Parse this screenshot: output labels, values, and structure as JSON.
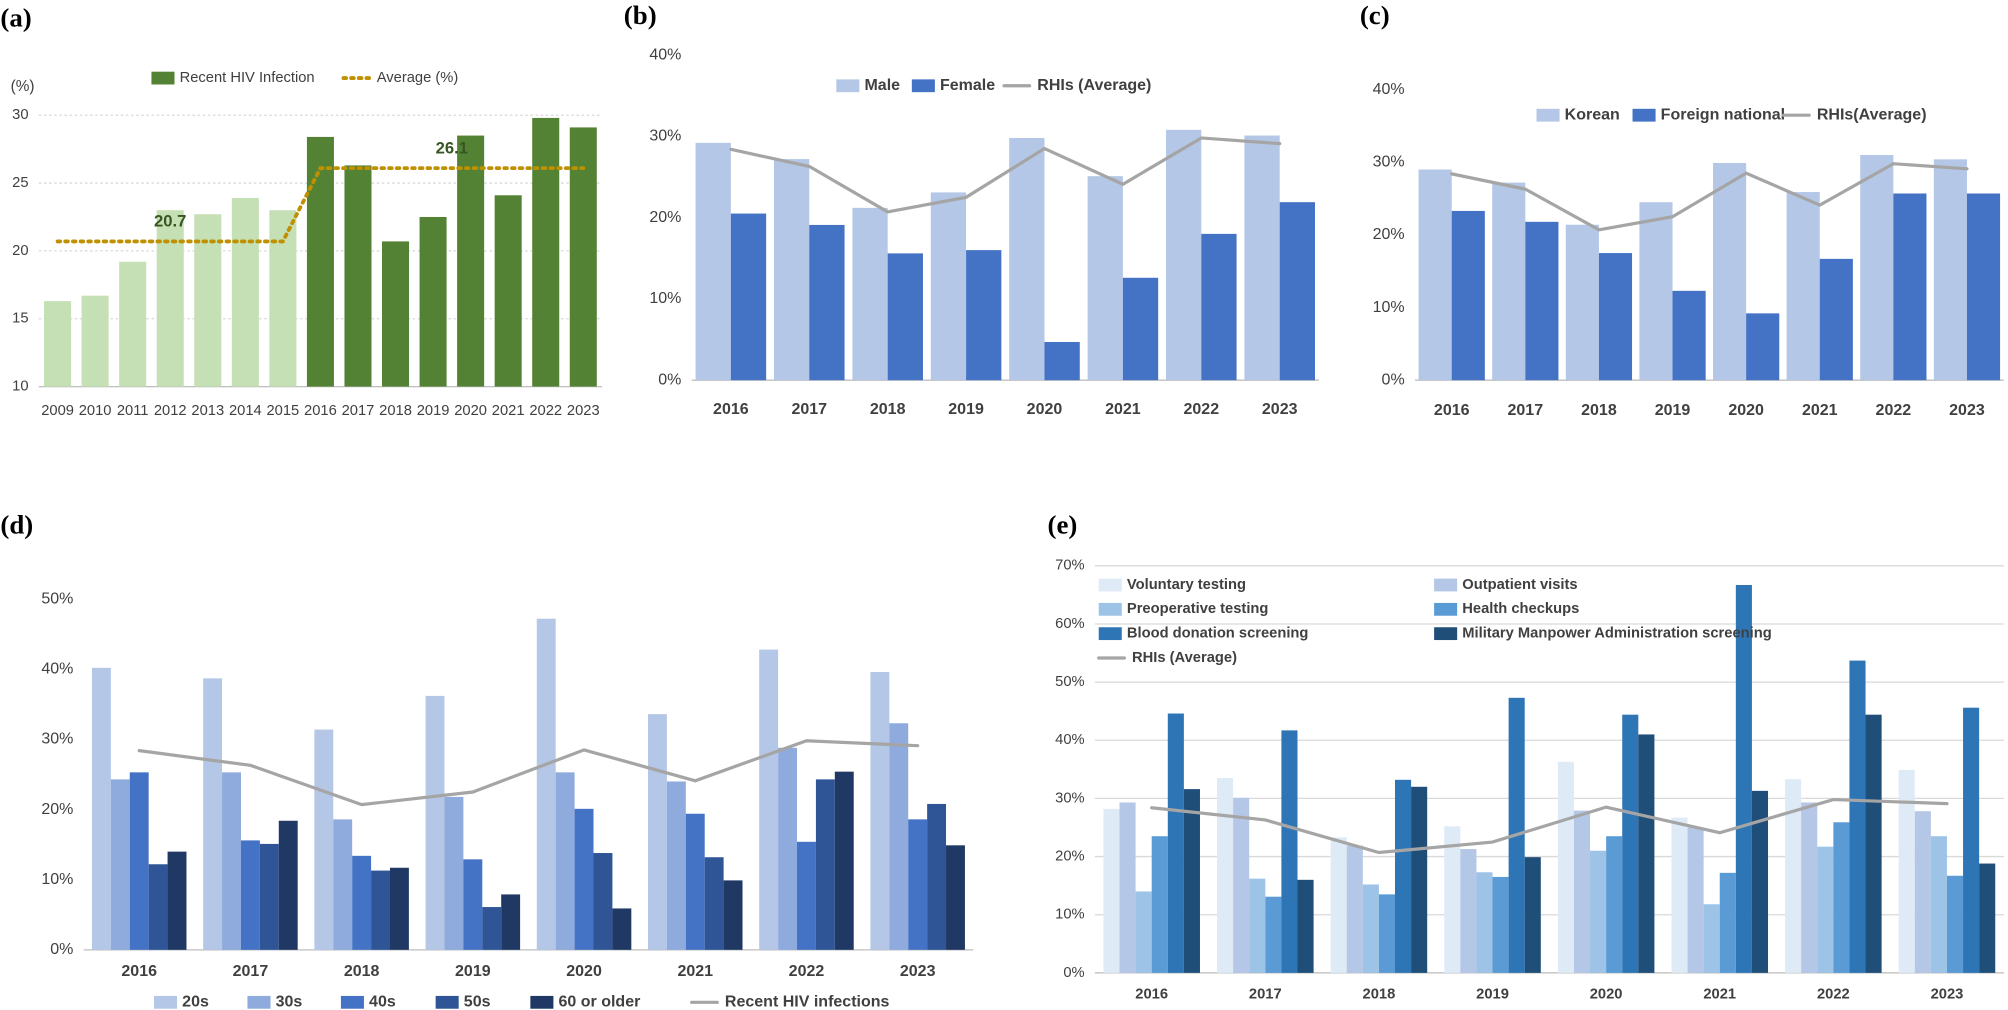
{
  "chart_data": [
    {
      "type": "bar",
      "panel_label": "(a)",
      "ylabel": "(%)",
      "categories": [
        "2009",
        "2010",
        "2011",
        "2012",
        "2013",
        "2014",
        "2015",
        "2016",
        "2017",
        "2018",
        "2019",
        "2020",
        "2021",
        "2022",
        "2023"
      ],
      "ylim": [
        10,
        30
      ],
      "yticks": [
        10,
        15,
        20,
        25,
        30
      ],
      "grid": true,
      "grid_style": "dotted",
      "legend": "top",
      "series": [
        {
          "name": "Recent HIV Infection",
          "type": "bar",
          "color": "#548235",
          "colors": [
            "#c5e0b4",
            "#c5e0b4",
            "#c5e0b4",
            "#c5e0b4",
            "#c5e0b4",
            "#c5e0b4",
            "#c5e0b4",
            "#548235",
            "#548235",
            "#548235",
            "#548235",
            "#548235",
            "#548235",
            "#548235",
            "#548235"
          ],
          "values": [
            16.3,
            16.7,
            19.2,
            23.0,
            22.7,
            23.9,
            23.0,
            28.4,
            26.3,
            20.7,
            22.5,
            28.5,
            24.1,
            29.8,
            29.1
          ]
        },
        {
          "name": "Average (%)",
          "type": "line",
          "color": "#bf9000",
          "dash": "dotted",
          "label_runs": true,
          "values": [
            20.7,
            20.7,
            20.7,
            20.7,
            20.7,
            20.7,
            20.7,
            26.1,
            26.1,
            26.1,
            26.1,
            26.1,
            26.1,
            26.1,
            26.1
          ]
        }
      ]
    },
    {
      "type": "bar",
      "panel_label": "(b)",
      "categories": [
        "2016",
        "2017",
        "2018",
        "2019",
        "2020",
        "2021",
        "2022",
        "2023"
      ],
      "ylim": [
        0,
        40
      ],
      "yticks": [
        {
          "value": 0,
          "label": "0%"
        },
        {
          "value": 10,
          "label": "10%"
        },
        {
          "value": 20,
          "label": "20%"
        },
        {
          "value": 30,
          "label": "30%"
        },
        {
          "value": 40,
          "label": "40%"
        }
      ],
      "grid": false,
      "legend": "top",
      "series": [
        {
          "name": "Male",
          "type": "bar",
          "color": "#b4c7e7",
          "values": [
            29.2,
            27.2,
            21.2,
            23.1,
            29.8,
            25.1,
            30.8,
            30.1
          ]
        },
        {
          "name": "Female",
          "type": "bar",
          "color": "#4472c4",
          "values": [
            20.5,
            19.1,
            15.6,
            16.0,
            4.7,
            12.6,
            18.0,
            21.9
          ]
        },
        {
          "name": "RHIs (Average)",
          "type": "line",
          "color": "#a5a5a5",
          "values": [
            28.4,
            26.3,
            20.7,
            22.5,
            28.5,
            24.1,
            29.8,
            29.1
          ]
        }
      ]
    },
    {
      "type": "bar",
      "panel_label": "(c)",
      "categories": [
        "2016",
        "2017",
        "2018",
        "2019",
        "2020",
        "2021",
        "2022",
        "2023"
      ],
      "ylim": [
        0,
        40
      ],
      "yticks": [
        {
          "value": 0,
          "label": "0%"
        },
        {
          "value": 10,
          "label": "10%"
        },
        {
          "value": 20,
          "label": "20%"
        },
        {
          "value": 30,
          "label": "30%"
        },
        {
          "value": 40,
          "label": "40%"
        }
      ],
      "grid": false,
      "legend": "top",
      "series": [
        {
          "name": "Korean",
          "type": "bar",
          "color": "#b4c7e7",
          "values": [
            29.0,
            27.2,
            21.4,
            24.5,
            29.9,
            25.9,
            31.0,
            30.4
          ]
        },
        {
          "name": "Foreign national",
          "type": "bar",
          "color": "#4472c4",
          "values": [
            23.3,
            21.8,
            17.5,
            12.3,
            9.2,
            16.7,
            25.7,
            25.7
          ]
        },
        {
          "name": "RHIs(Average)",
          "type": "line",
          "color": "#a5a5a5",
          "values": [
            28.4,
            26.3,
            20.7,
            22.5,
            28.5,
            24.1,
            29.8,
            29.1
          ]
        }
      ]
    },
    {
      "type": "bar",
      "panel_label": "(d)",
      "categories": [
        "2016",
        "2017",
        "2018",
        "2019",
        "2020",
        "2021",
        "2022",
        "2023"
      ],
      "ylim": [
        0,
        50
      ],
      "yticks": [
        {
          "value": 0,
          "label": "0%"
        },
        {
          "value": 10,
          "label": "10%"
        },
        {
          "value": 20,
          "label": "20%"
        },
        {
          "value": 30,
          "label": "30%"
        },
        {
          "value": 40,
          "label": "40%"
        },
        {
          "value": 50,
          "label": "50%"
        }
      ],
      "grid": false,
      "legend": "bottom",
      "series": [
        {
          "name": "20s",
          "type": "bar",
          "color": "#b4c7e7",
          "values": [
            40.2,
            38.7,
            31.4,
            36.2,
            47.2,
            33.6,
            42.8,
            39.6
          ]
        },
        {
          "name": "30s",
          "type": "bar",
          "color": "#8faadc",
          "values": [
            24.3,
            25.3,
            18.6,
            21.8,
            25.3,
            24.0,
            28.8,
            32.3
          ]
        },
        {
          "name": "40s",
          "type": "bar",
          "color": "#4472c4",
          "values": [
            25.3,
            15.6,
            13.4,
            12.9,
            20.1,
            19.4,
            15.4,
            18.6
          ]
        },
        {
          "name": "50s",
          "type": "bar",
          "color": "#2f5597",
          "values": [
            12.2,
            15.1,
            11.3,
            6.1,
            13.8,
            13.2,
            24.3,
            20.8
          ]
        },
        {
          "name": "60 or older",
          "type": "bar",
          "color": "#203864",
          "values": [
            14.0,
            18.4,
            11.7,
            7.9,
            5.9,
            9.9,
            25.4,
            14.9
          ]
        },
        {
          "name": "Recent HIV infections",
          "type": "line",
          "color": "#a5a5a5",
          "values": [
            28.4,
            26.3,
            20.7,
            22.5,
            28.5,
            24.1,
            29.8,
            29.1
          ]
        }
      ]
    },
    {
      "type": "bar",
      "panel_label": "(e)",
      "categories": [
        "2016",
        "2017",
        "2018",
        "2019",
        "2020",
        "2021",
        "2022",
        "2023"
      ],
      "ylim": [
        0,
        70
      ],
      "yticks": [
        {
          "value": 0,
          "label": "0%"
        },
        {
          "value": 10,
          "label": "10%"
        },
        {
          "value": 20,
          "label": "20%"
        },
        {
          "value": 30,
          "label": "30%"
        },
        {
          "value": 40,
          "label": "40%"
        },
        {
          "value": 50,
          "label": "50%"
        },
        {
          "value": 60,
          "label": "60%"
        },
        {
          "value": 70,
          "label": "70%"
        }
      ],
      "grid": true,
      "grid_style": "solid",
      "legend": "top left",
      "series": [
        {
          "name": "Voluntary testing",
          "type": "bar",
          "color": "#deebf7",
          "values": [
            28.2,
            33.5,
            23.3,
            25.2,
            36.3,
            26.7,
            33.3,
            34.9
          ]
        },
        {
          "name": "Outpatient visits",
          "type": "bar",
          "color": "#b4c7e7",
          "values": [
            29.3,
            30.1,
            21.9,
            21.3,
            27.9,
            25.0,
            29.3,
            27.8
          ]
        },
        {
          "name": "Preoperative testing",
          "type": "bar",
          "color": "#9dc3e6",
          "values": [
            14.0,
            16.2,
            15.2,
            17.3,
            21.0,
            11.8,
            21.7,
            23.5
          ]
        },
        {
          "name": "Health checkups",
          "type": "bar",
          "color": "#5b9bd5",
          "values": [
            23.5,
            13.1,
            13.5,
            16.5,
            23.5,
            17.2,
            25.9,
            16.7
          ]
        },
        {
          "name": "Blood donation screening",
          "type": "bar",
          "color": "#2e75b6",
          "values": [
            44.6,
            41.7,
            33.2,
            47.3,
            44.4,
            66.7,
            53.7,
            45.6
          ]
        },
        {
          "name": "Military Manpower Administration screening",
          "type": "bar",
          "color": "#1f4e79",
          "values": [
            31.6,
            16.0,
            32.0,
            19.9,
            41.0,
            31.3,
            44.4,
            18.8
          ]
        },
        {
          "name": "RHIs (Average)",
          "type": "line",
          "color": "#a5a5a5",
          "values": [
            28.4,
            26.3,
            20.7,
            22.5,
            28.5,
            24.1,
            29.8,
            29.1
          ]
        }
      ]
    }
  ]
}
